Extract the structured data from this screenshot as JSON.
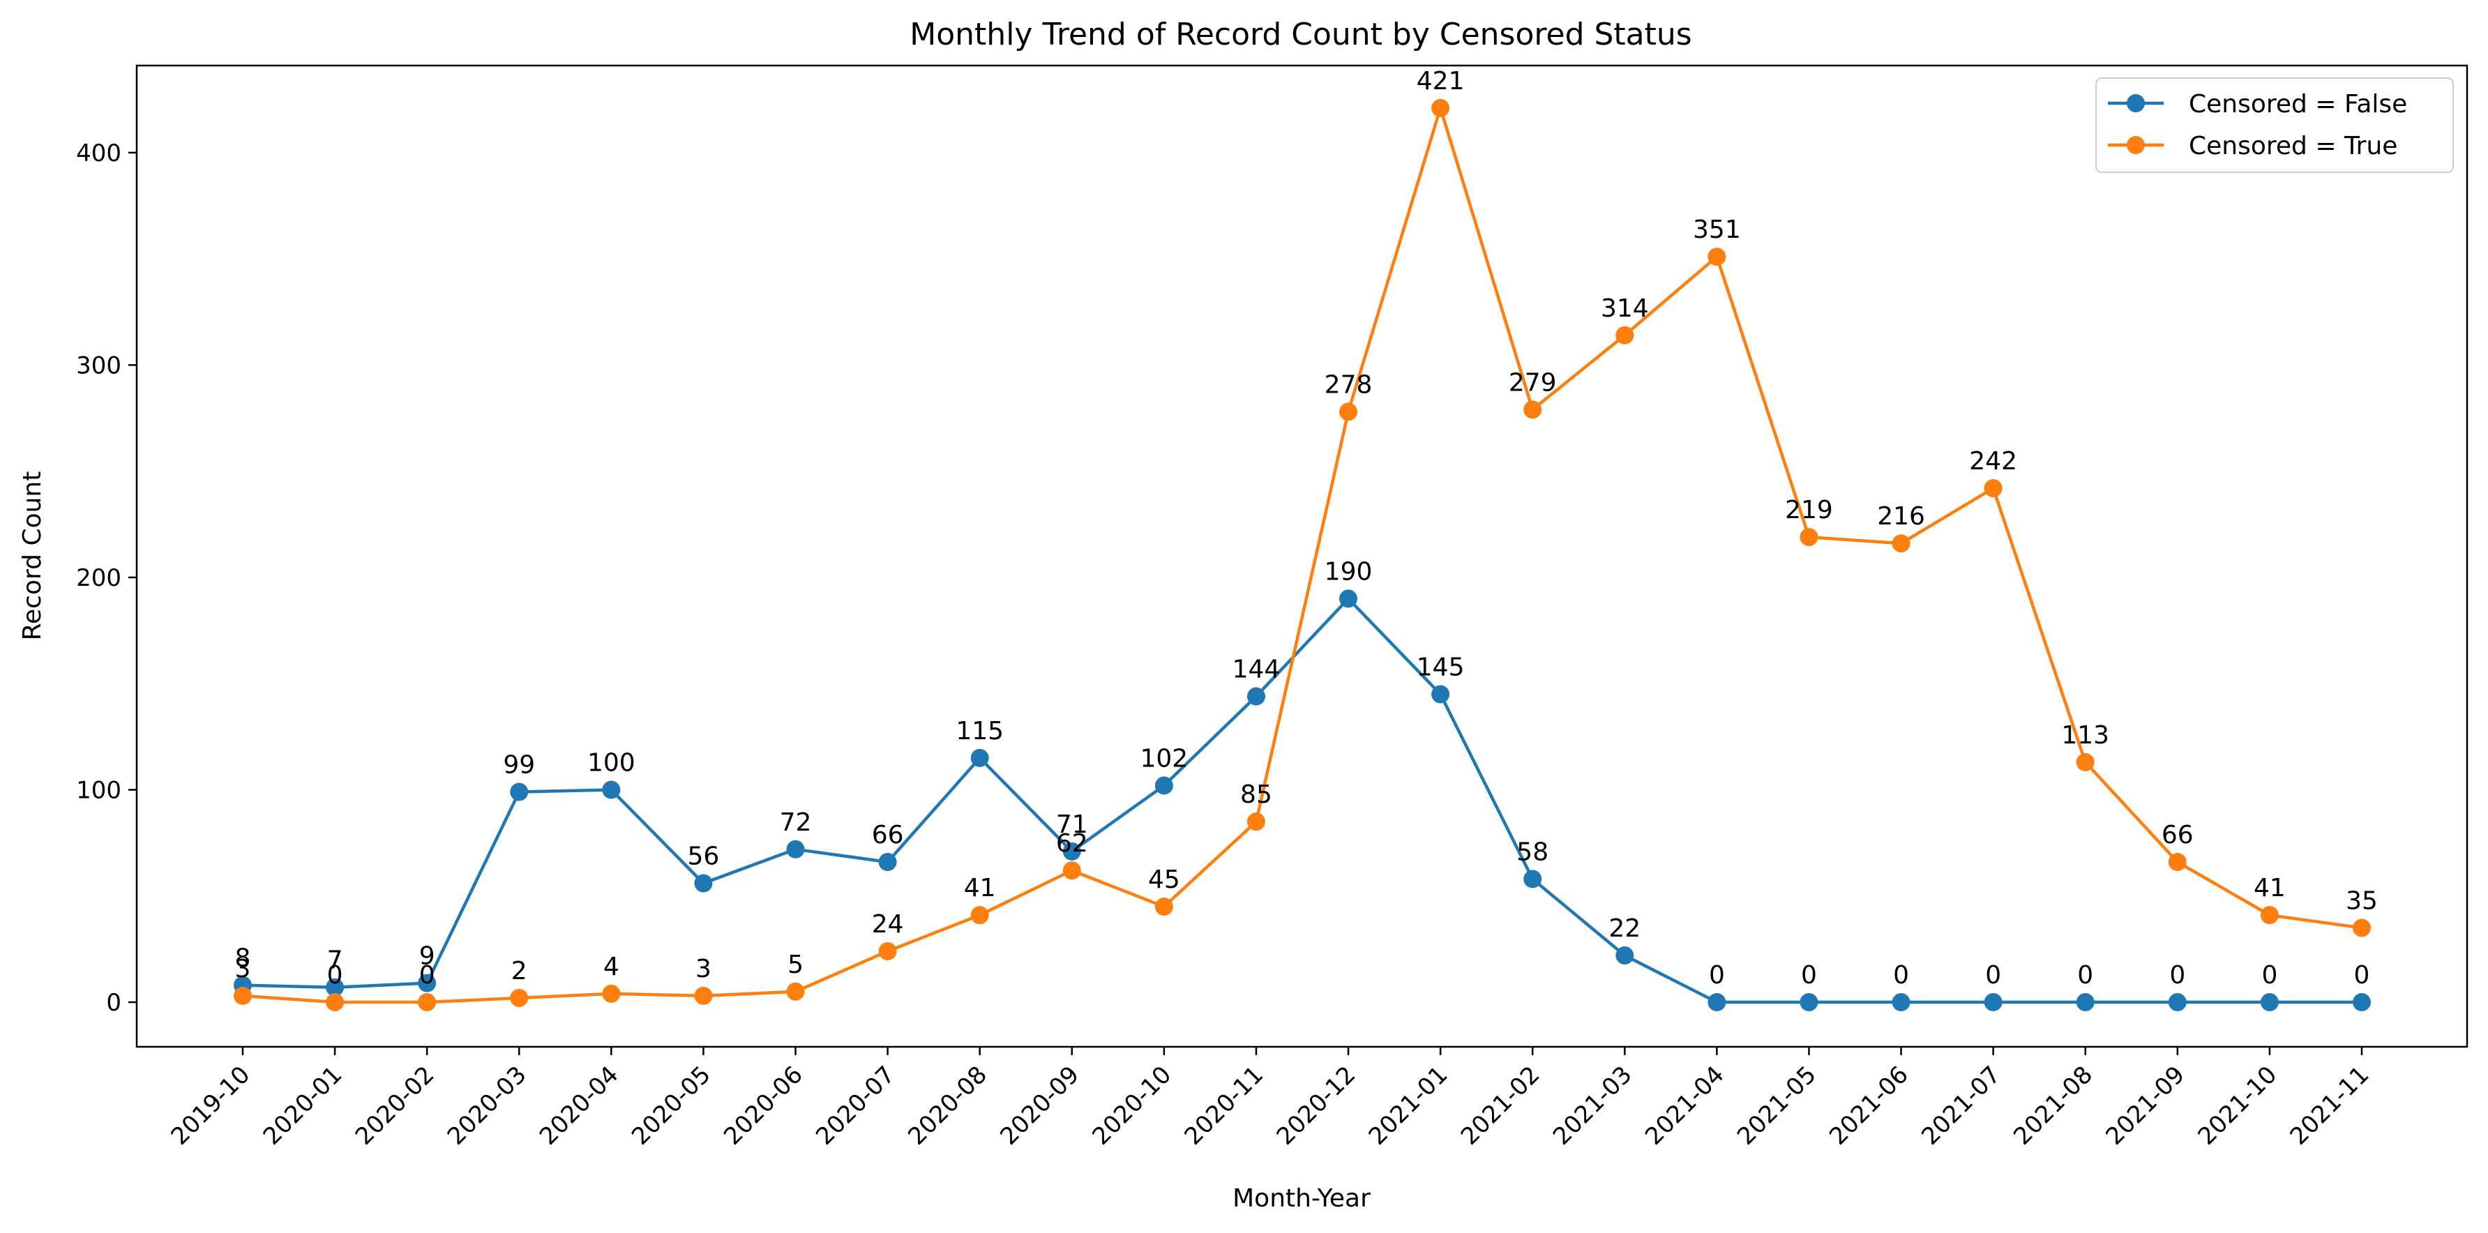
{
  "chart_data": {
    "type": "line",
    "title": "Monthly Trend of Record Count by Censored Status",
    "xlabel": "Month-Year",
    "ylabel": "Record Count",
    "categories": [
      "2019-10",
      "2020-01",
      "2020-02",
      "2020-03",
      "2020-04",
      "2020-05",
      "2020-06",
      "2020-07",
      "2020-08",
      "2020-09",
      "2020-10",
      "2020-11",
      "2020-12",
      "2021-01",
      "2021-02",
      "2021-03",
      "2021-04",
      "2021-05",
      "2021-06",
      "2021-07",
      "2021-08",
      "2021-09",
      "2021-10",
      "2021-11"
    ],
    "ylim": [
      -21,
      441
    ],
    "yticks": [
      0,
      100,
      200,
      300,
      400
    ],
    "grid": false,
    "legend_position": "top-right",
    "series": [
      {
        "name": "Censored = False",
        "color": "#1f77b4",
        "marker": "circle",
        "values": [
          8,
          7,
          9,
          99,
          100,
          56,
          72,
          66,
          115,
          71,
          102,
          144,
          190,
          145,
          58,
          22,
          0,
          0,
          0,
          0,
          0,
          0,
          0,
          0
        ]
      },
      {
        "name": "Censored = True",
        "color": "#ff7f0e",
        "marker": "circle",
        "values": [
          3,
          0,
          0,
          2,
          4,
          3,
          5,
          24,
          41,
          62,
          45,
          85,
          278,
          421,
          279,
          314,
          351,
          219,
          216,
          242,
          113,
          66,
          41,
          35
        ]
      }
    ]
  }
}
